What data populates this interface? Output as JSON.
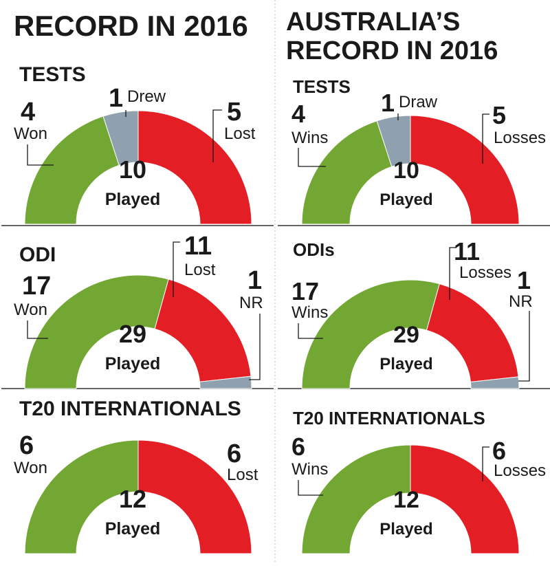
{
  "colors": {
    "won": "#72a733",
    "lost": "#e31e25",
    "drew": "#8fa1ae",
    "nr": "#8fa1ae",
    "rule": "#333333"
  },
  "panels": [
    {
      "title_lines": [
        "RECORD IN 2016"
      ],
      "sections": [
        {
          "title": "TESTS",
          "total": "10",
          "total_label": "Played",
          "segments": [
            {
              "key": "won",
              "value": 4,
              "label": "Won"
            },
            {
              "key": "drew",
              "value": 1,
              "label": "Drew"
            },
            {
              "key": "lost",
              "value": 5,
              "label": "Lost"
            }
          ]
        },
        {
          "title": "ODI",
          "total": "29",
          "total_label": "Played",
          "segments": [
            {
              "key": "won",
              "value": 17,
              "label": "Won"
            },
            {
              "key": "lost",
              "value": 11,
              "label": "Lost"
            },
            {
              "key": "nr",
              "value": 1,
              "label": "NR"
            }
          ]
        },
        {
          "title": "T20 INTERNATIONALS",
          "total": "12",
          "total_label": "Played",
          "segments": [
            {
              "key": "won",
              "value": 6,
              "label": "Won"
            },
            {
              "key": "lost",
              "value": 6,
              "label": "Lost"
            }
          ]
        }
      ]
    },
    {
      "title_lines": [
        "AUSTRALIA’S",
        "RECORD IN 2016"
      ],
      "sections": [
        {
          "title": "TESTS",
          "total": "10",
          "total_label": "Played",
          "segments": [
            {
              "key": "won",
              "value": 4,
              "label": "Wins"
            },
            {
              "key": "drew",
              "value": 1,
              "label": "Draw"
            },
            {
              "key": "lost",
              "value": 5,
              "label": "Losses"
            }
          ]
        },
        {
          "title": "ODIs",
          "total": "29",
          "total_label": "Played",
          "segments": [
            {
              "key": "won",
              "value": 17,
              "label": "Wins"
            },
            {
              "key": "lost",
              "value": 11,
              "label": "Losses"
            },
            {
              "key": "nr",
              "value": 1,
              "label": "NR"
            }
          ]
        },
        {
          "title": "T20 INTERNATIONALS",
          "total": "12",
          "total_label": "Played",
          "segments": [
            {
              "key": "won",
              "value": 6,
              "label": "Wins"
            },
            {
              "key": "lost",
              "value": 6,
              "label": "Losses"
            }
          ]
        }
      ]
    }
  ],
  "chart_data": [
    {
      "type": "pie",
      "title": "RECORD IN 2016 — TESTS",
      "categories": [
        "Won",
        "Drew",
        "Lost"
      ],
      "values": [
        4,
        1,
        5
      ],
      "total": 10
    },
    {
      "type": "pie",
      "title": "RECORD IN 2016 — ODI",
      "categories": [
        "Won",
        "Lost",
        "NR"
      ],
      "values": [
        17,
        11,
        1
      ],
      "total": 29
    },
    {
      "type": "pie",
      "title": "RECORD IN 2016 — T20 INTERNATIONALS",
      "categories": [
        "Won",
        "Lost"
      ],
      "values": [
        6,
        6
      ],
      "total": 12
    },
    {
      "type": "pie",
      "title": "AUSTRALIA’S RECORD IN 2016 — TESTS",
      "categories": [
        "Wins",
        "Draw",
        "Losses"
      ],
      "values": [
        4,
        1,
        5
      ],
      "total": 10
    },
    {
      "type": "pie",
      "title": "AUSTRALIA’S RECORD IN 2016 — ODIs",
      "categories": [
        "Wins",
        "Losses",
        "NR"
      ],
      "values": [
        17,
        11,
        1
      ],
      "total": 29
    },
    {
      "type": "pie",
      "title": "AUSTRALIA’S RECORD IN 2016 — T20 INTERNATIONALS",
      "categories": [
        "Wins",
        "Losses"
      ],
      "values": [
        6,
        6
      ],
      "total": 12
    }
  ]
}
